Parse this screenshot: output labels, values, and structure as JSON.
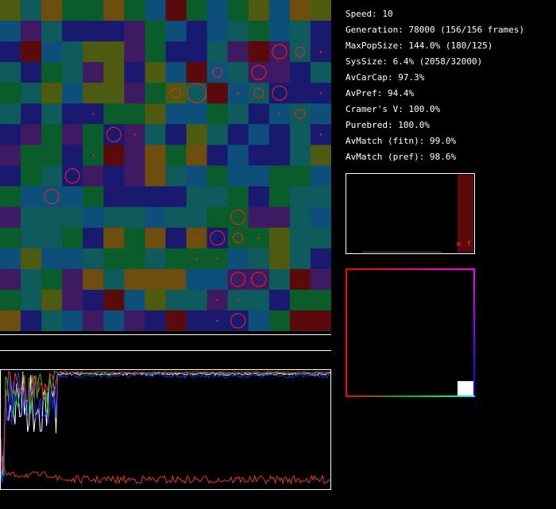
{
  "stats": {
    "speed": "Speed: 10",
    "generation": "Generation: 78000 (156/156 frames)",
    "max_pop_size": "MaxPopSize: 144.0% (180/125)",
    "sys_size": "SysSize: 6.4% (2058/32000)",
    "av_car_cap": "AvCarCap: 97.3%",
    "av_pref": "AvPref: 94.4%",
    "cramers_v": "Cramer's V: 100.0%",
    "purebred": "Purebred: 100.0%",
    "av_match_fitn": "AvMatch (fitn): 99.0%",
    "av_match_pref": "AvMatch (pref): 98.6%"
  },
  "histogram": {
    "label": "m f"
  },
  "colors": {
    "background": "#000000",
    "frame": "#ffffff",
    "marker": "#ff2020",
    "trace_red": "#e03a2a",
    "trace_green": "#20c020",
    "trace_blue": "#2030ff",
    "trace_white": "#ffffff",
    "histogram_bar": "#5a0a0a"
  },
  "grid": {
    "size": 16,
    "palette": {
      "N": "#191970",
      "B": "#0d4f7a",
      "T": "#0f5a5a",
      "G": "#0a5c2a",
      "O": "#4e5a0f",
      "P": "#3e1a62",
      "R": "#5a0a0a",
      "S": "#1f4a6e",
      "E": "#6e4e0f",
      "A": "#2a6a1a"
    },
    "rows": [
      "OTEGGEGBRGBGOBEO",
      "BPTNNNPGBNBTGBTN",
      "NRBTOOPGNNTPRPTN",
      "TNGTPONOBRBTPPNT",
      "GTOBOOPGOTRBTNNN",
      "TNTNNGGOBBGTNBTB",
      "NPGPGNPTNOTNBNTN",
      "PGGNGRPEGENBNNTO",
      "NGTNPNPETBGBBGGB",
      "GBBBGNNNNTTGNGTT",
      "PTTTBTTBTTGGPPTB",
      "GTTGNEGENENGGOTT",
      "BOBBTGGTGGGBTOTN",
      "PTGPETEEEBBPPTRP",
      "GTOPNRBOTTPTTNGG",
      "ENTBPBPNRNNNBGRR"
    ],
    "circles": [
      {
        "row": 2,
        "col": 13,
        "size": "large"
      },
      {
        "row": 2,
        "col": 14,
        "size": "medium"
      },
      {
        "row": 3,
        "col": 10,
        "size": "medium"
      },
      {
        "row": 3,
        "col": 12,
        "size": "large"
      },
      {
        "row": 4,
        "col": 8,
        "size": "medium"
      },
      {
        "row": 4,
        "col": 9,
        "size": "xlarge"
      },
      {
        "row": 4,
        "col": 12,
        "size": "medium"
      },
      {
        "row": 4,
        "col": 13,
        "size": "large"
      },
      {
        "row": 5,
        "col": 14,
        "size": "medium"
      },
      {
        "row": 6,
        "col": 5,
        "size": "large"
      },
      {
        "row": 8,
        "col": 3,
        "size": "large"
      },
      {
        "row": 9,
        "col": 2,
        "size": "large"
      },
      {
        "row": 10,
        "col": 11,
        "size": "large"
      },
      {
        "row": 11,
        "col": 10,
        "size": "large"
      },
      {
        "row": 11,
        "col": 11,
        "size": "medium"
      },
      {
        "row": 13,
        "col": 11,
        "size": "large"
      },
      {
        "row": 13,
        "col": 12,
        "size": "large"
      },
      {
        "row": 15,
        "col": 11,
        "size": "large"
      }
    ],
    "dots": [
      {
        "row": 2,
        "col": 15
      },
      {
        "row": 4,
        "col": 11
      },
      {
        "row": 4,
        "col": 15
      },
      {
        "row": 5,
        "col": 4
      },
      {
        "row": 5,
        "col": 13
      },
      {
        "row": 6,
        "col": 6
      },
      {
        "row": 6,
        "col": 15
      },
      {
        "row": 7,
        "col": 4
      },
      {
        "row": 11,
        "col": 9
      },
      {
        "row": 11,
        "col": 12
      },
      {
        "row": 12,
        "col": 9
      },
      {
        "row": 12,
        "col": 10
      },
      {
        "row": 14,
        "col": 10
      },
      {
        "row": 14,
        "col": 11
      },
      {
        "row": 15,
        "col": 10
      }
    ]
  }
}
